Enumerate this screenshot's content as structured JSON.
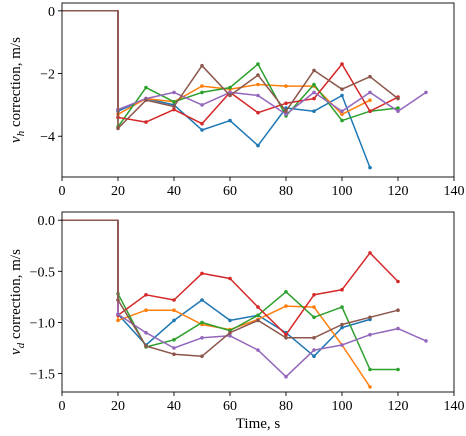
{
  "chart_data": [
    {
      "type": "line",
      "ylabel_prefix": "v",
      "ylabel_sub": "h",
      "ylabel_suffix": " correction, m/s",
      "xlabel": "",
      "xlim": [
        0,
        140
      ],
      "ylim": [
        -5.3,
        0.25
      ],
      "xticks": [
        0,
        20,
        40,
        60,
        80,
        100,
        120,
        140
      ],
      "yticks": [
        0,
        -2,
        -4
      ],
      "ytick_labels": [
        "0",
        "−2",
        "−4"
      ],
      "grid": false,
      "series": [
        {
          "color": "#1f77b4",
          "x": [
            0,
            20,
            20,
            30,
            40,
            50,
            60,
            70,
            80,
            90,
            100,
            110
          ],
          "y": [
            0,
            0,
            -3.2,
            -2.8,
            -3.0,
            -3.8,
            -3.5,
            -4.3,
            -3.1,
            -3.2,
            -2.7,
            -5.0
          ]
        },
        {
          "color": "#ff7f0e",
          "x": [
            0,
            20,
            20,
            30,
            40,
            50,
            60,
            70,
            80,
            90,
            100,
            110
          ],
          "y": [
            0,
            0,
            -3.3,
            -2.8,
            -2.9,
            -2.4,
            -2.5,
            -2.35,
            -2.4,
            -2.4,
            -3.3,
            -2.85
          ]
        },
        {
          "color": "#2ca02c",
          "x": [
            0,
            20,
            20,
            30,
            40,
            50,
            60,
            70,
            80,
            90,
            100,
            110,
            120
          ],
          "y": [
            0,
            0,
            -3.7,
            -2.45,
            -2.9,
            -2.6,
            -2.45,
            -1.7,
            -3.35,
            -2.35,
            -3.5,
            -3.2,
            -3.1
          ]
        },
        {
          "color": "#d62728",
          "x": [
            0,
            20,
            20,
            30,
            40,
            50,
            60,
            70,
            80,
            90,
            100,
            110,
            120
          ],
          "y": [
            0,
            0,
            -3.4,
            -3.55,
            -3.15,
            -3.6,
            -2.6,
            -3.25,
            -2.95,
            -2.8,
            -1.7,
            -3.2,
            -2.75
          ]
        },
        {
          "color": "#9467bd",
          "x": [
            0,
            20,
            20,
            30,
            40,
            50,
            60,
            70,
            80,
            90,
            100,
            110,
            120,
            130
          ],
          "y": [
            0,
            0,
            -3.15,
            -2.8,
            -2.6,
            -3.0,
            -2.6,
            -2.7,
            -3.3,
            -2.6,
            -3.2,
            -2.6,
            -3.2,
            -2.6
          ]
        },
        {
          "color": "#8c564b",
          "x": [
            0,
            20,
            20,
            30,
            40,
            50,
            60,
            70,
            80,
            90,
            100,
            110,
            120
          ],
          "y": [
            0,
            0,
            -3.75,
            -2.85,
            -3.05,
            -1.75,
            -2.7,
            -2.05,
            -3.2,
            -1.9,
            -2.5,
            -2.1,
            -2.8
          ]
        }
      ]
    },
    {
      "type": "line",
      "ylabel_prefix": "v",
      "ylabel_sub": "d",
      "ylabel_suffix": " correction, m/s",
      "xlabel": "Time, s",
      "xlim": [
        0,
        140
      ],
      "ylim": [
        -1.68,
        0.08
      ],
      "xticks": [
        0,
        20,
        40,
        60,
        80,
        100,
        120,
        140
      ],
      "yticks": [
        0.0,
        -0.5,
        -1.0,
        -1.5
      ],
      "ytick_labels": [
        "0.0",
        "−0.5",
        "−1.0",
        "−1.5"
      ],
      "grid": false,
      "series": [
        {
          "color": "#1f77b4",
          "x": [
            0,
            20,
            20,
            30,
            40,
            50,
            60,
            70,
            80,
            90,
            100,
            110
          ],
          "y": [
            0,
            0,
            -0.92,
            -1.22,
            -0.98,
            -0.78,
            -0.98,
            -0.93,
            -1.1,
            -1.33,
            -1.05,
            -0.97
          ]
        },
        {
          "color": "#ff7f0e",
          "x": [
            0,
            20,
            20,
            30,
            40,
            50,
            60,
            70,
            80,
            90,
            100,
            110
          ],
          "y": [
            0,
            0,
            -0.98,
            -0.88,
            -0.88,
            -1.02,
            -1.07,
            -0.97,
            -0.84,
            -0.85,
            -1.22,
            -1.63
          ]
        },
        {
          "color": "#2ca02c",
          "x": [
            0,
            20,
            20,
            30,
            40,
            50,
            60,
            70,
            80,
            90,
            100,
            110,
            120
          ],
          "y": [
            0,
            0,
            -0.72,
            -1.24,
            -1.17,
            -1.0,
            -1.08,
            -0.93,
            -0.7,
            -0.95,
            -0.85,
            -1.46,
            -1.46
          ]
        },
        {
          "color": "#d62728",
          "x": [
            0,
            20,
            20,
            30,
            40,
            50,
            60,
            70,
            80,
            90,
            100,
            110,
            120
          ],
          "y": [
            0,
            0,
            -0.93,
            -0.73,
            -0.78,
            -0.52,
            -0.57,
            -0.85,
            -1.12,
            -0.73,
            -0.68,
            -0.32,
            -0.6
          ]
        },
        {
          "color": "#9467bd",
          "x": [
            0,
            20,
            20,
            30,
            40,
            50,
            60,
            70,
            80,
            90,
            100,
            110,
            120,
            130
          ],
          "y": [
            0,
            0,
            -0.92,
            -1.1,
            -1.25,
            -1.15,
            -1.13,
            -1.27,
            -1.53,
            -1.27,
            -1.22,
            -1.12,
            -1.06,
            -1.18
          ]
        },
        {
          "color": "#8c564b",
          "x": [
            0,
            20,
            20,
            30,
            40,
            50,
            60,
            70,
            80,
            90,
            100,
            110,
            120
          ],
          "y": [
            0,
            0,
            -0.78,
            -1.23,
            -1.31,
            -1.33,
            -1.1,
            -0.98,
            -1.15,
            -1.15,
            -1.02,
            -0.95,
            -0.88
          ]
        }
      ]
    }
  ]
}
